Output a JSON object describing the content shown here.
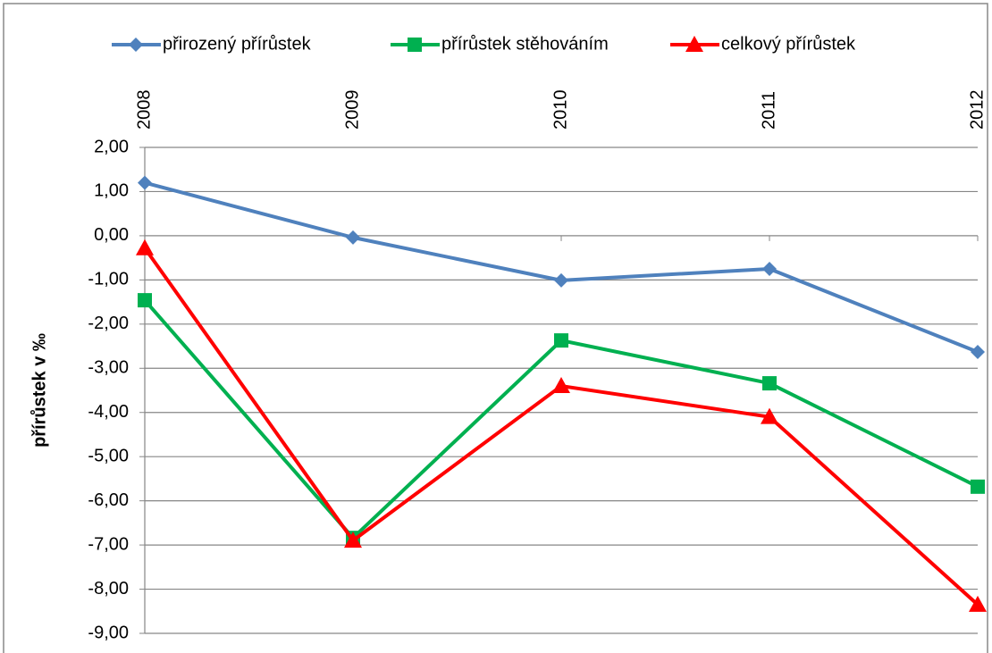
{
  "chart_data": {
    "type": "line",
    "y_label": "přírůstek v ‰",
    "categories": [
      "2008",
      "2009",
      "2010",
      "2011",
      "2012"
    ],
    "series": [
      {
        "name": "přirozený přírůstek",
        "color": "#4f81bd",
        "marker": "diamond",
        "values": [
          1.2,
          -0.04,
          -1.01,
          -0.75,
          -2.63
        ]
      },
      {
        "name": "přírůstek stěhováním",
        "color": "#00b050",
        "marker": "square",
        "values": [
          -1.46,
          -6.84,
          -2.37,
          -3.34,
          -5.68
        ]
      },
      {
        "name": "celkový přírůstek",
        "color": "#ff0000",
        "marker": "triangle",
        "values": [
          -0.28,
          -6.9,
          -3.4,
          -4.1,
          -8.35
        ]
      }
    ],
    "ylim": [
      -9,
      2
    ],
    "yticks": [
      {
        "value": 2,
        "label": "2,00"
      },
      {
        "value": 1,
        "label": "1,00"
      },
      {
        "value": 0,
        "label": "0,00"
      },
      {
        "value": -1,
        "label": "-1,00"
      },
      {
        "value": -2,
        "label": "-2,00"
      },
      {
        "value": -3,
        "label": "-3,00"
      },
      {
        "value": -4,
        "label": "-4,00"
      },
      {
        "value": -5,
        "label": "-5,00"
      },
      {
        "value": -6,
        "label": "-6,00"
      },
      {
        "value": -7,
        "label": "-7,00"
      },
      {
        "value": -8,
        "label": "-8,00"
      },
      {
        "value": -9,
        "label": "-9,00"
      }
    ],
    "grid": true,
    "legend": "top"
  }
}
